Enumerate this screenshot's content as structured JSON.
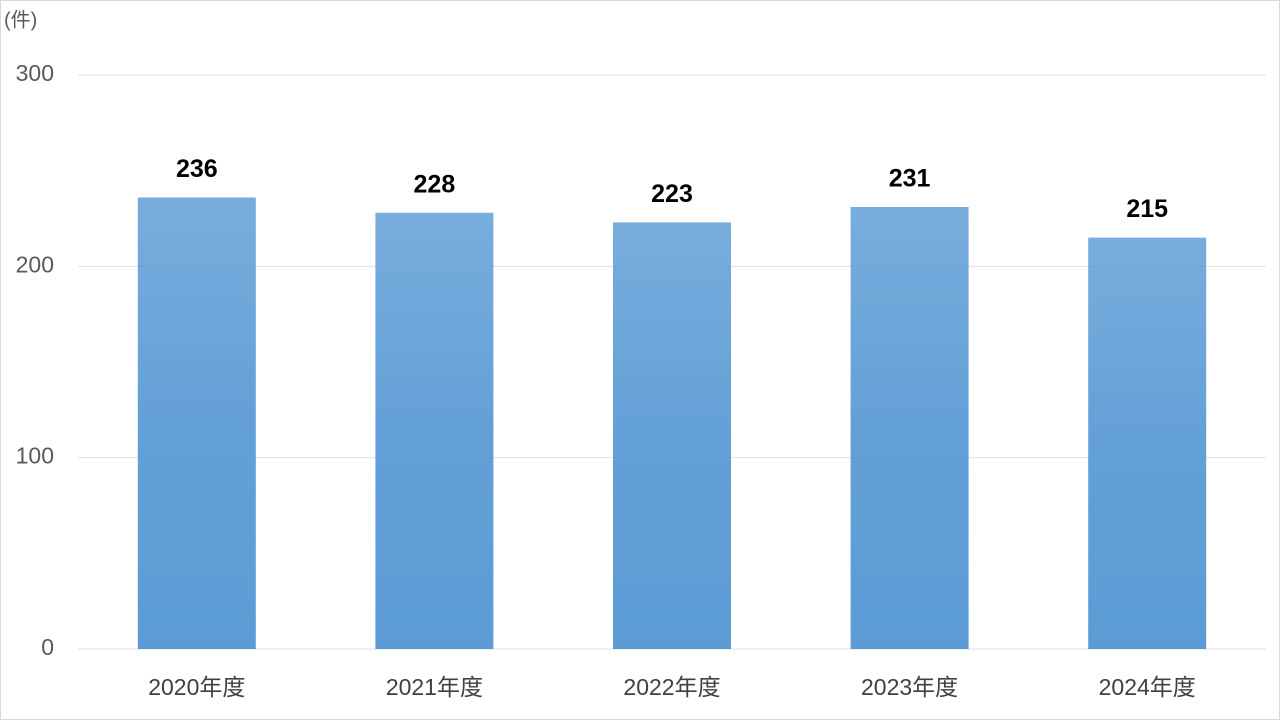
{
  "chart_data": {
    "type": "bar",
    "ylabel": "(件)",
    "categories": [
      "2020年度",
      "2021年度",
      "2022年度",
      "2023年度",
      "2024年度"
    ],
    "values": [
      236,
      228,
      223,
      231,
      215
    ],
    "color": "#5b9bd5",
    "ylim": [
      0,
      300
    ],
    "yticks": [
      0,
      100,
      200,
      300
    ],
    "grid": true
  }
}
